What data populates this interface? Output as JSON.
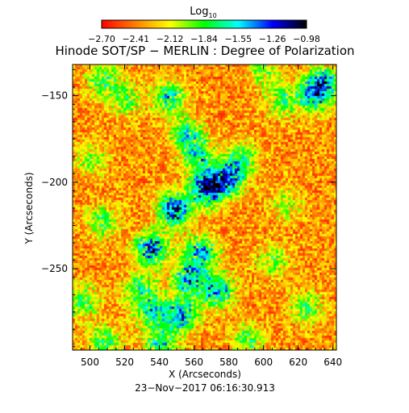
{
  "chart_data": {
    "type": "heatmap",
    "title": "Hinode SOT/SP − MERLIN : Degree of Polarization",
    "colorbar": {
      "label_base": "Log",
      "label_sub": "10",
      "ticks": [
        "−2.70",
        "−2.41",
        "−2.12",
        "−1.84",
        "−1.55",
        "−1.26",
        "−0.98"
      ],
      "range": [
        -2.7,
        -0.98
      ],
      "colors": [
        "#ff0000",
        "#ff8000",
        "#ffff00",
        "#00ff00",
        "#00ffff",
        "#0000ff",
        "#000000"
      ]
    },
    "xlabel": "X (Arcseconds)",
    "ylabel": "Y (Arcseconds)",
    "xlim": [
      490,
      642
    ],
    "ylim": [
      -297,
      -132
    ],
    "x_ticks": [
      500,
      520,
      540,
      560,
      580,
      600,
      620,
      640
    ],
    "x_tick_labels": [
      "500",
      "520",
      "540",
      "560",
      "580",
      "600",
      "620",
      "640"
    ],
    "y_ticks": [
      -150,
      -200,
      -250
    ],
    "y_tick_labels": [
      "−150",
      "−200",
      "−250"
    ],
    "timestamp": "23−Nov−2017 06:16:30.913",
    "hotspots": [
      {
        "x": 567,
        "y": -203,
        "strength": 1.0
      },
      {
        "x": 548,
        "y": -215,
        "strength": 0.95
      },
      {
        "x": 579,
        "y": -197,
        "strength": 0.85
      },
      {
        "x": 535,
        "y": -238,
        "strength": 0.85
      },
      {
        "x": 556,
        "y": -255,
        "strength": 0.75
      },
      {
        "x": 564,
        "y": -240,
        "strength": 0.7
      },
      {
        "x": 573,
        "y": -262,
        "strength": 0.75
      },
      {
        "x": 552,
        "y": -276,
        "strength": 0.75
      },
      {
        "x": 540,
        "y": -292,
        "strength": 0.55
      },
      {
        "x": 528,
        "y": -262,
        "strength": 0.5
      },
      {
        "x": 536,
        "y": -275,
        "strength": 0.55
      },
      {
        "x": 545,
        "y": -150,
        "strength": 0.6
      },
      {
        "x": 555,
        "y": -172,
        "strength": 0.55
      },
      {
        "x": 562,
        "y": -185,
        "strength": 0.55
      },
      {
        "x": 587,
        "y": -185,
        "strength": 0.45
      },
      {
        "x": 633,
        "y": -142,
        "strength": 0.75
      },
      {
        "x": 628,
        "y": -150,
        "strength": 0.55
      },
      {
        "x": 600,
        "y": -135,
        "strength": 0.35
      },
      {
        "x": 610,
        "y": -152,
        "strength": 0.45
      },
      {
        "x": 507,
        "y": -140,
        "strength": 0.5
      },
      {
        "x": 520,
        "y": -152,
        "strength": 0.4
      },
      {
        "x": 495,
        "y": -268,
        "strength": 0.5
      },
      {
        "x": 508,
        "y": -292,
        "strength": 0.5
      },
      {
        "x": 507,
        "y": -222,
        "strength": 0.45
      },
      {
        "x": 624,
        "y": -272,
        "strength": 0.45
      },
      {
        "x": 605,
        "y": -245,
        "strength": 0.4
      },
      {
        "x": 590,
        "y": -290,
        "strength": 0.45
      },
      {
        "x": 612,
        "y": -212,
        "strength": 0.3
      },
      {
        "x": 500,
        "y": -186,
        "strength": 0.35
      }
    ]
  }
}
